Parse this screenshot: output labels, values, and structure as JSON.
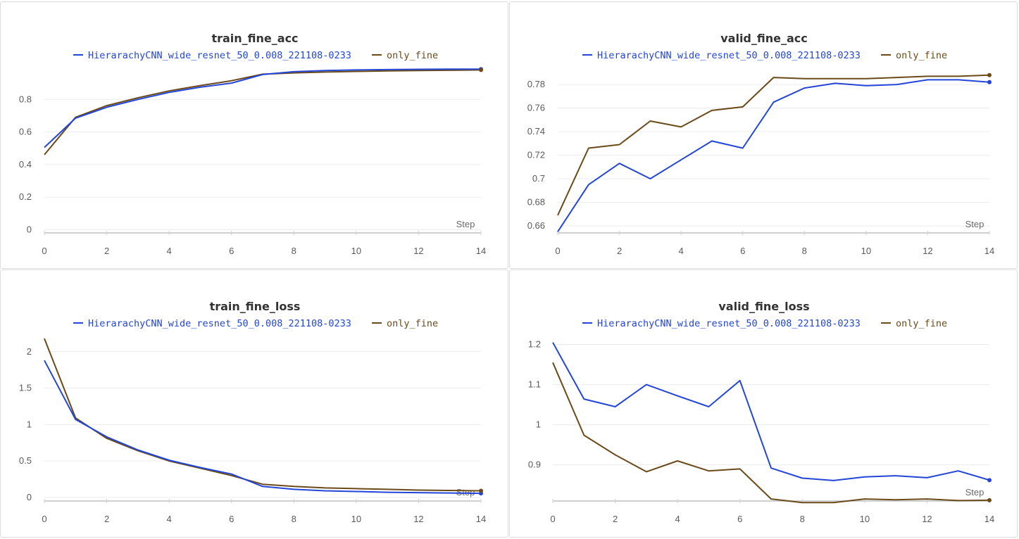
{
  "chart_data": [
    {
      "type": "line",
      "title": "train_fine_acc",
      "xlabel": "Step",
      "ylabel": "",
      "xlim": [
        0,
        14
      ],
      "ylim": [
        -0.02,
        1.0
      ],
      "xticks": [
        "0",
        "2",
        "4",
        "6",
        "8",
        "10",
        "12",
        "14"
      ],
      "yticks": [
        {
          "value": 0,
          "label": "0"
        },
        {
          "value": 0.2,
          "label": "0.2"
        },
        {
          "value": 0.4,
          "label": "0.4"
        },
        {
          "value": 0.6,
          "label": "0.6"
        },
        {
          "value": 0.8,
          "label": "0.8"
        }
      ],
      "x": [
        0,
        1,
        2,
        3,
        4,
        5,
        6,
        7,
        8,
        9,
        10,
        11,
        12,
        13,
        14
      ],
      "series": [
        {
          "name": "HierarachyCNN_wide_resnet_50_0.008_221108-0233",
          "color": "#2346d9",
          "values": [
            0.505,
            0.685,
            0.752,
            0.8,
            0.843,
            0.875,
            0.9,
            0.953,
            0.97,
            0.977,
            0.981,
            0.983,
            0.985,
            0.986,
            0.986
          ]
        },
        {
          "name": "only_fine",
          "color": "#6b4a1a",
          "values": [
            0.46,
            0.69,
            0.762,
            0.81,
            0.852,
            0.885,
            0.915,
            0.955,
            0.963,
            0.968,
            0.972,
            0.975,
            0.977,
            0.979,
            0.981
          ]
        }
      ],
      "legend": "top-center",
      "grid": true
    },
    {
      "type": "line",
      "title": "valid_fine_acc",
      "xlabel": "Step",
      "ylabel": "",
      "xlim": [
        0,
        14
      ],
      "ylim": [
        0.654,
        0.795
      ],
      "xticks": [
        "0",
        "2",
        "4",
        "6",
        "8",
        "10",
        "12",
        "14"
      ],
      "yticks": [
        {
          "value": 0.66,
          "label": "0.66"
        },
        {
          "value": 0.68,
          "label": "0.68"
        },
        {
          "value": 0.7,
          "label": "0.7"
        },
        {
          "value": 0.72,
          "label": "0.72"
        },
        {
          "value": 0.74,
          "label": "0.74"
        },
        {
          "value": 0.76,
          "label": "0.76"
        },
        {
          "value": 0.78,
          "label": "0.78"
        }
      ],
      "x": [
        0,
        1,
        2,
        3,
        4,
        5,
        6,
        7,
        8,
        9,
        10,
        11,
        12,
        13,
        14
      ],
      "series": [
        {
          "name": "HierarachyCNN_wide_resnet_50_0.008_221108-0233",
          "color": "#2346d9",
          "values": [
            0.655,
            0.695,
            0.713,
            0.7,
            0.716,
            0.732,
            0.726,
            0.765,
            0.777,
            0.781,
            0.779,
            0.78,
            0.784,
            0.784,
            0.782
          ]
        },
        {
          "name": "only_fine",
          "color": "#6b4a1a",
          "values": [
            0.669,
            0.726,
            0.729,
            0.749,
            0.744,
            0.758,
            0.761,
            0.786,
            0.785,
            0.785,
            0.785,
            0.786,
            0.787,
            0.787,
            0.788
          ]
        }
      ],
      "legend": "top-center",
      "grid": true
    },
    {
      "type": "line",
      "title": "train_fine_loss",
      "xlabel": "Step",
      "ylabel": "",
      "xlim": [
        0,
        14
      ],
      "ylim": [
        -0.05,
        2.22
      ],
      "xticks": [
        "0",
        "2",
        "4",
        "6",
        "8",
        "10",
        "12",
        "14"
      ],
      "yticks": [
        {
          "value": 0,
          "label": "0"
        },
        {
          "value": 0.5,
          "label": "0.5"
        },
        {
          "value": 1,
          "label": "1"
        },
        {
          "value": 1.5,
          "label": "1.5"
        },
        {
          "value": 2,
          "label": "2"
        }
      ],
      "x": [
        0,
        1,
        2,
        3,
        4,
        5,
        6,
        7,
        8,
        9,
        10,
        11,
        12,
        13,
        14
      ],
      "series": [
        {
          "name": "HierarachyCNN_wide_resnet_50_0.008_221108-0233",
          "color": "#2346d9",
          "values": [
            1.88,
            1.07,
            0.83,
            0.65,
            0.51,
            0.41,
            0.32,
            0.15,
            0.11,
            0.09,
            0.08,
            0.07,
            0.065,
            0.06,
            0.055
          ]
        },
        {
          "name": "only_fine",
          "color": "#6b4a1a",
          "values": [
            2.18,
            1.09,
            0.81,
            0.64,
            0.5,
            0.4,
            0.3,
            0.18,
            0.15,
            0.13,
            0.12,
            0.11,
            0.1,
            0.095,
            0.09
          ]
        }
      ],
      "legend": "top-center",
      "grid": true
    },
    {
      "type": "line",
      "title": "valid_fine_loss",
      "xlabel": "Step",
      "ylabel": "",
      "xlim": [
        0,
        14
      ],
      "ylim": [
        0.81,
        1.222
      ],
      "xticks": [
        "0",
        "2",
        "4",
        "6",
        "8",
        "10",
        "12",
        "14"
      ],
      "yticks": [
        {
          "value": 0.9,
          "label": "0.9"
        },
        {
          "value": 1.0,
          "label": "1"
        },
        {
          "value": 1.1,
          "label": "1.1"
        },
        {
          "value": 1.2,
          "label": "1.2"
        }
      ],
      "x": [
        0,
        1,
        2,
        3,
        4,
        5,
        6,
        7,
        8,
        9,
        10,
        11,
        12,
        13,
        14
      ],
      "series": [
        {
          "name": "HierarachyCNN_wide_resnet_50_0.008_221108-0233",
          "color": "#2346d9",
          "values": [
            1.205,
            1.064,
            1.045,
            1.1,
            1.072,
            1.045,
            1.11,
            0.892,
            0.867,
            0.861,
            0.87,
            0.873,
            0.868,
            0.885,
            0.862
          ]
        },
        {
          "name": "only_fine",
          "color": "#6b4a1a",
          "values": [
            1.155,
            0.974,
            0.925,
            0.883,
            0.91,
            0.885,
            0.89,
            0.815,
            0.806,
            0.806,
            0.815,
            0.813,
            0.815,
            0.811,
            0.812
          ]
        }
      ],
      "legend": "top-center",
      "grid": true
    }
  ]
}
